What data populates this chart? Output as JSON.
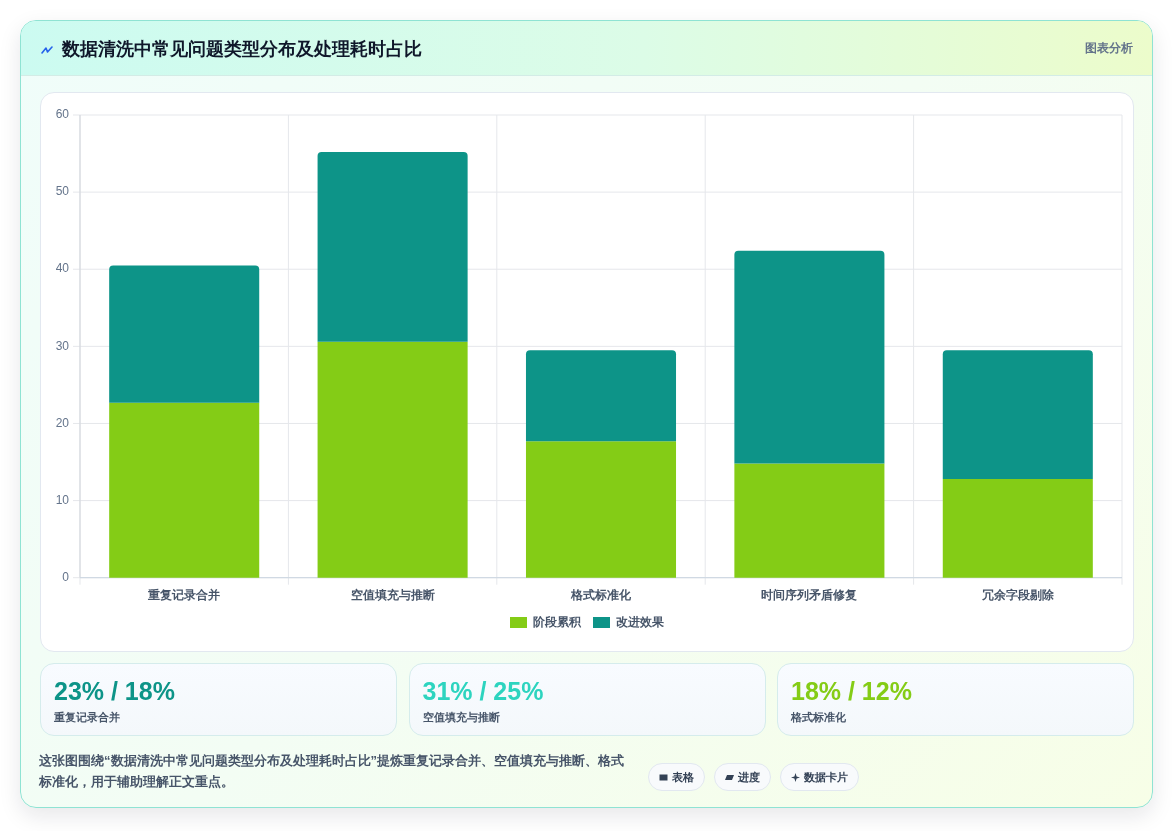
{
  "chart_data": [
    {
      "type": "bar",
      "title": "数据清洗中常见问题类型分布及处理耗时占比",
      "annotations": [
        "图表分析"
      ],
      "categories": [
        "重复记录合并",
        "空值填充与推断",
        "格式标准化",
        "时间序列矛盾修复",
        "冗余字段剔除"
      ],
      "series": [
        {
          "name": "阶段累积",
          "color": "#84cc16",
          "values": [
            22.7,
            30.6,
            17.7,
            14.8,
            12.8
          ]
        },
        {
          "name": "改进效果",
          "color": "#0d9488",
          "values": [
            17.8,
            24.6,
            11.8,
            27.6,
            16.7
          ]
        }
      ],
      "stacked": true,
      "ylim": [
        0,
        60
      ],
      "yticks": [
        0,
        10,
        20,
        30,
        40,
        50,
        60
      ],
      "grid": true,
      "legend": "bottom"
    },
    {
      "type": "other",
      "title": "23% / 18%",
      "subtitle": "重复记录合并",
      "color": "#0d9488"
    },
    {
      "type": "other",
      "title": "31% / 25%",
      "subtitle": "空值填充与推断",
      "color": "#2dd4bf"
    },
    {
      "type": "other",
      "title": "18% / 12%",
      "subtitle": "格式标准化",
      "color": "#84cc16"
    },
    {
      "type": "other",
      "annotations": [
        "这张图围绕“数据清洗中常见问题类型分布及处理耗时占比”提炼重复记录合并、空值填充与推断、格式标准化，用于辅助理解正文重点。",
        "表格",
        "进度",
        "数据卡片"
      ]
    }
  ]
}
